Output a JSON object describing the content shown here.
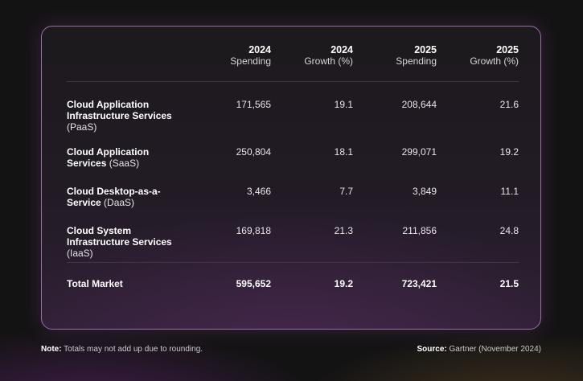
{
  "table": {
    "headers": [
      {
        "year": "",
        "sub": ""
      },
      {
        "year": "2024",
        "sub": "Spending"
      },
      {
        "year": "2024",
        "sub": "Growth (%)"
      },
      {
        "year": "2025",
        "sub": "Spending"
      },
      {
        "year": "2025",
        "sub": "Growth (%)"
      }
    ],
    "rows": [
      {
        "label_bold": "Cloud Application Infrastructure Services",
        "label_rest": "(PaaS)",
        "spend_2024": "171,565",
        "growth_2024": "19.1",
        "spend_2025": "208,644",
        "growth_2025": "21.6"
      },
      {
        "label_bold": "Cloud Application Services",
        "label_rest": "(SaaS)",
        "spend_2024": "250,804",
        "growth_2024": "18.1",
        "spend_2025": "299,071",
        "growth_2025": "19.2"
      },
      {
        "label_bold": "Cloud Desktop-as-a-Service",
        "label_rest": "(DaaS)",
        "spend_2024": "3,466",
        "growth_2024": "7.7",
        "spend_2025": "3,849",
        "growth_2025": "11.1"
      },
      {
        "label_bold": "Cloud System Infrastructure Services",
        "label_rest": "(IaaS)",
        "spend_2024": "169,818",
        "growth_2024": "21.3",
        "spend_2025": "211,856",
        "growth_2025": "24.8"
      }
    ],
    "total": {
      "label": "Total Market",
      "spend_2024": "595,652",
      "growth_2024": "19.2",
      "spend_2025": "723,421",
      "growth_2025": "21.5"
    }
  },
  "footer": {
    "note_label": "Note:",
    "note_text": " Totals may not add up due to rounding.",
    "source_label": "Source:",
    "source_text": " Gartner (November 2024)"
  }
}
